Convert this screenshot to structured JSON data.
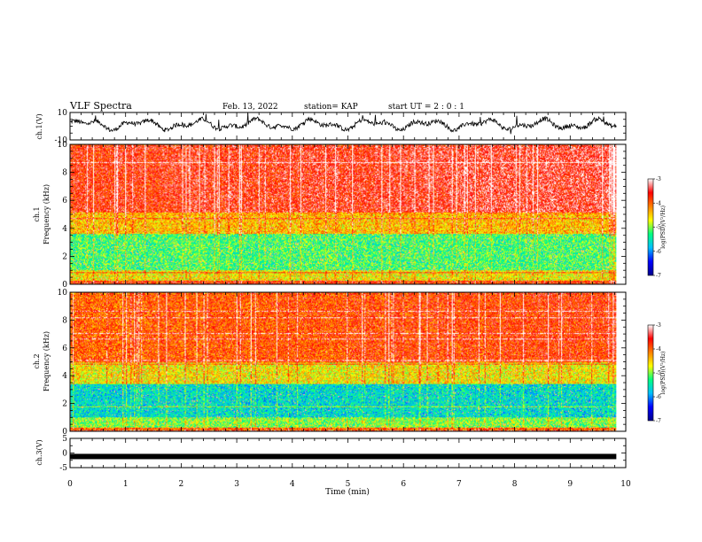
{
  "header": {
    "title": "VLF Spectra",
    "date": "Feb. 13, 2022",
    "station": "station= KAP",
    "start": "start  UT  =   2  : 0  : 1"
  },
  "chart_data": [
    {
      "type": "line",
      "name": "ch1",
      "ylabel": "ch.1(V)",
      "ylim": [
        -10,
        10
      ],
      "ytick_labels": [
        "10",
        "-10"
      ],
      "xlim": [
        0,
        9.83
      ],
      "description_values": "noisy waveform oscillating roughly between -4 and 5 V",
      "samples_approx": [
        0,
        3,
        1,
        4,
        2,
        -2,
        3,
        4,
        5,
        1,
        -3,
        2,
        4,
        1,
        -2,
        3,
        5,
        2,
        -1,
        3,
        4,
        0,
        -2,
        3,
        4,
        2,
        1,
        3,
        2,
        -1,
        2,
        4,
        3,
        1,
        -2,
        2,
        4,
        3,
        0,
        2
      ]
    },
    {
      "type": "heatmap",
      "name": "ch1-spectrogram",
      "ylabel": "ch.1\nFrequency (kHz)",
      "ylabel_lines": [
        "ch.1",
        "Frequency (kHz)"
      ],
      "ylim": [
        0,
        10
      ],
      "ytick_labels": [
        "0",
        "2",
        "4",
        "6",
        "8",
        "10"
      ],
      "xlim": [
        0,
        9.83
      ],
      "colorbar": {
        "label": "log(PSD)(V²/Hz)",
        "range": [
          -7,
          -3
        ],
        "tick_labels": [
          "-3",
          "-4",
          "-5",
          "-6",
          "-7"
        ]
      },
      "band_levels_by_khz": [
        {
          "f": [
            0,
            0.3
          ],
          "level": -3.8
        },
        {
          "f": [
            0.3,
            1.0
          ],
          "level": -4.6
        },
        {
          "f": [
            1.0,
            3.6
          ],
          "level": -5.2
        },
        {
          "f": [
            3.6,
            5.2
          ],
          "level": -4.4
        },
        {
          "f": [
            5.2,
            10
          ],
          "level": -3.7
        }
      ]
    },
    {
      "type": "heatmap",
      "name": "ch2-spectrogram",
      "ylabel": "ch.2\nFrequency (kHz)",
      "ylabel_lines": [
        "ch.2",
        "Frequency (kHz)"
      ],
      "ylim": [
        0,
        10
      ],
      "ytick_labels": [
        "0",
        "2",
        "4",
        "6",
        "8",
        "10"
      ],
      "xlim": [
        0,
        9.83
      ],
      "colorbar": {
        "label": "log(PSD)(V²/Hz)",
        "range": [
          -7,
          -3
        ],
        "tick_labels": [
          "-3",
          "-4",
          "-5",
          "-6",
          "-7"
        ]
      },
      "band_levels_by_khz": [
        {
          "f": [
            0,
            0.3
          ],
          "level": -4.0
        },
        {
          "f": [
            0.3,
            1.0
          ],
          "level": -5.0
        },
        {
          "f": [
            1.0,
            3.4
          ],
          "level": -5.6
        },
        {
          "f": [
            3.4,
            5.0
          ],
          "level": -4.6
        },
        {
          "f": [
            5.0,
            10
          ],
          "level": -4.0
        }
      ]
    },
    {
      "type": "line",
      "name": "ch3",
      "ylabel": "ch.3(V)",
      "ylim": [
        -5,
        5
      ],
      "ytick_labels": [
        "5",
        "0",
        "-5"
      ],
      "xlim": [
        0,
        9.83
      ],
      "constant_value": -1.2
    }
  ],
  "xaxis": {
    "xlabel": "Time (min)",
    "xlim": [
      0,
      10
    ],
    "tick_labels": [
      "0",
      "1",
      "2",
      "3",
      "4",
      "5",
      "6",
      "7",
      "8",
      "9",
      "10"
    ]
  },
  "colors": {
    "colormap": [
      "#00008b",
      "#0000ff",
      "#00bfff",
      "#00ff80",
      "#ffff00",
      "#ff8000",
      "#ff0000",
      "#ffffff"
    ]
  }
}
